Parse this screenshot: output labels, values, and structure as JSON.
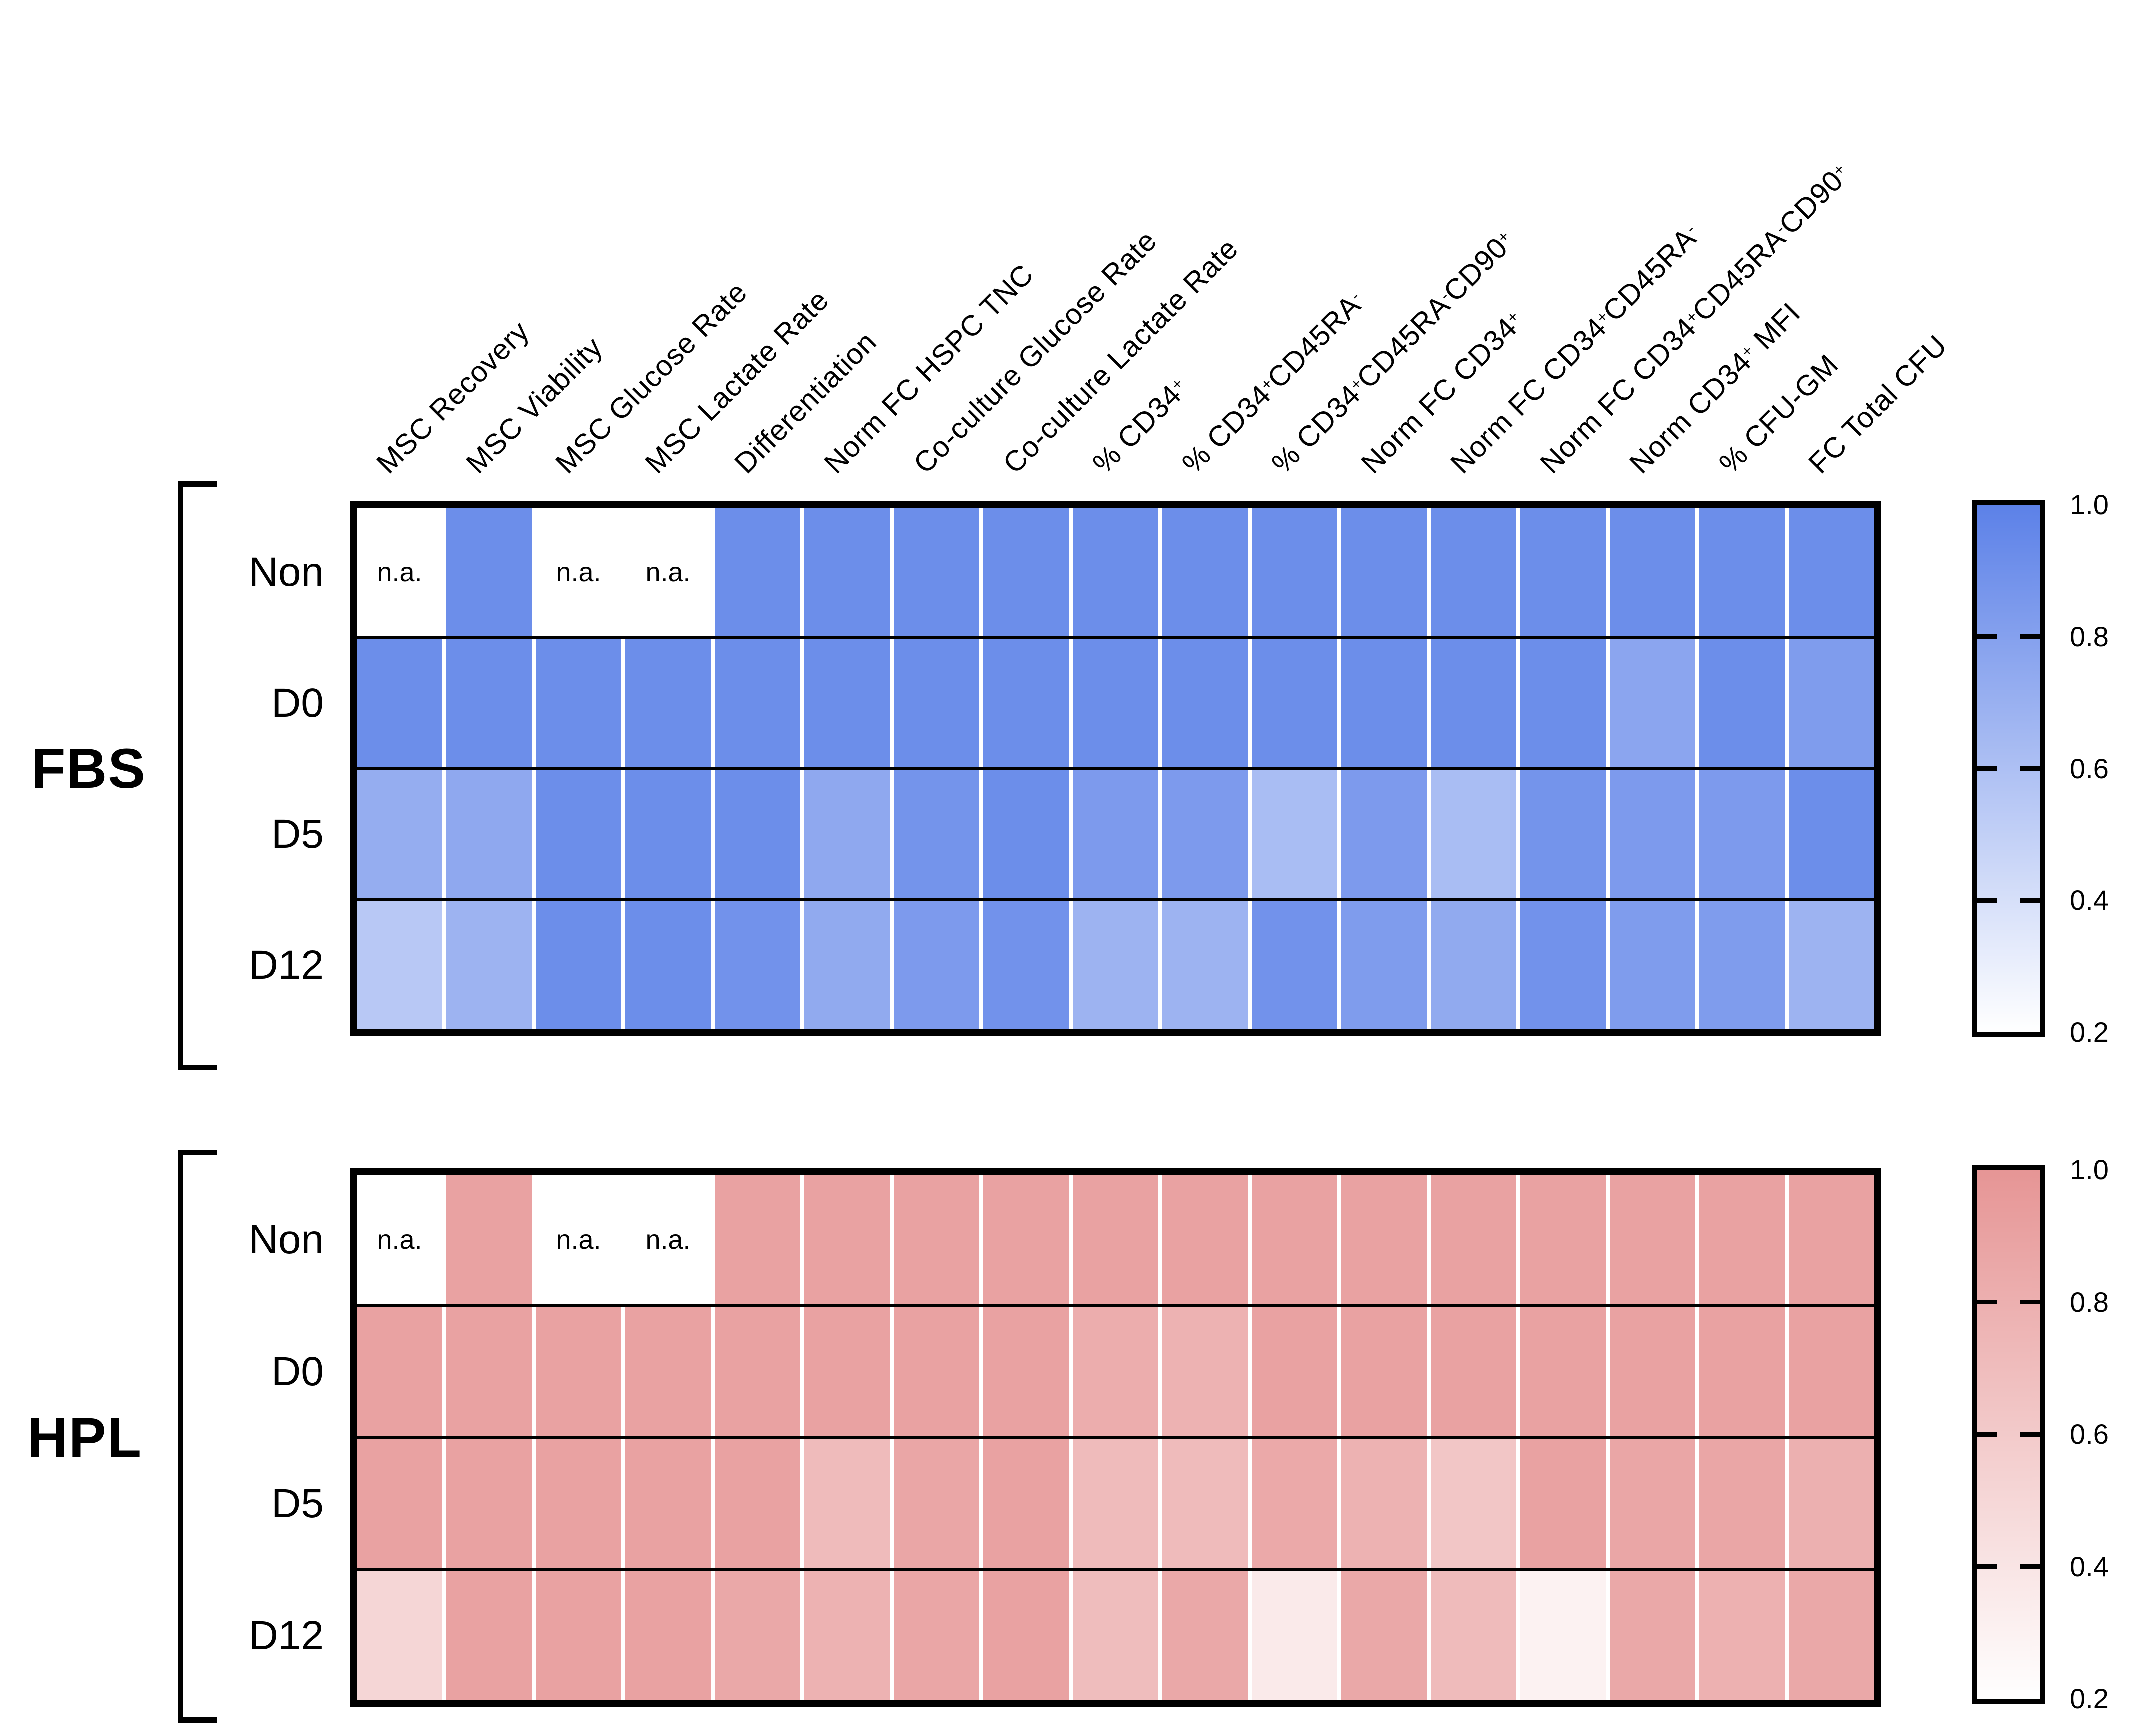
{
  "chart_data": {
    "type": "heatmap",
    "title": "",
    "na_label": "n.a.",
    "columns": [
      "MSC Recovery",
      "MSC Viability",
      "MSC Glucose Rate",
      "MSC Lactate Rate",
      "Differentiation",
      "Norm FC HSPC TNC",
      "Co-culture Glucose Rate",
      "Co-culture Lactate Rate",
      "% CD34^+^",
      "% CD34^+^CD45RA^-^",
      "% CD34^+^CD45RA^-^CD90^+^",
      "Norm FC CD34^+^",
      "Norm FC CD34^+^CD45RA^-^",
      "Norm FC CD34^+^CD45RA^-^CD90^+^",
      "Norm CD34^+^ MFI",
      "% CFU-GM",
      "FC Total CFU"
    ],
    "rows": [
      "Non",
      "D0",
      "D5",
      "D12"
    ],
    "groups": [
      {
        "name": "FBS",
        "colormap_max": "#5c81e8",
        "colormap_min": "#ffffff",
        "values": [
          [
            null,
            0.92,
            null,
            null,
            0.92,
            0.92,
            0.92,
            0.92,
            0.92,
            0.92,
            0.92,
            0.92,
            0.92,
            0.92,
            0.92,
            0.92,
            0.92
          ],
          [
            0.92,
            0.92,
            0.92,
            0.92,
            0.92,
            0.92,
            0.92,
            0.92,
            0.92,
            0.92,
            0.92,
            0.92,
            0.92,
            0.92,
            0.77,
            0.92,
            0.83
          ],
          [
            0.72,
            0.75,
            0.92,
            0.92,
            0.92,
            0.75,
            0.88,
            0.92,
            0.84,
            0.84,
            0.62,
            0.84,
            0.62,
            0.88,
            0.84,
            0.84,
            0.92
          ],
          [
            0.55,
            0.68,
            0.92,
            0.92,
            0.89,
            0.74,
            0.84,
            0.89,
            0.68,
            0.68,
            0.89,
            0.83,
            0.74,
            0.89,
            0.83,
            0.83,
            0.68
          ]
        ]
      },
      {
        "name": "HPL",
        "colormap_max": "#e69595",
        "colormap_min": "#ffffff",
        "values": [
          [
            null,
            0.9,
            null,
            null,
            0.9,
            0.9,
            0.9,
            0.9,
            0.9,
            0.9,
            0.9,
            0.9,
            0.9,
            0.9,
            0.9,
            0.9,
            0.9
          ],
          [
            0.9,
            0.9,
            0.9,
            0.9,
            0.9,
            0.9,
            0.9,
            0.9,
            0.82,
            0.78,
            0.9,
            0.9,
            0.9,
            0.9,
            0.9,
            0.9,
            0.9
          ],
          [
            0.9,
            0.9,
            0.9,
            0.9,
            0.9,
            0.71,
            0.87,
            0.9,
            0.71,
            0.71,
            0.85,
            0.78,
            0.63,
            0.9,
            0.87,
            0.87,
            0.8
          ],
          [
            0.51,
            0.9,
            0.9,
            0.9,
            0.86,
            0.78,
            0.87,
            0.9,
            0.7,
            0.86,
            0.36,
            0.86,
            0.71,
            0.3,
            0.86,
            0.79,
            0.86
          ]
        ]
      }
    ],
    "scale": {
      "vmin": 0.2,
      "vmax": 1.0,
      "tick_labels": [
        "1.0",
        "0.8",
        "0.6",
        "0.4",
        "0.2"
      ],
      "legend_position": "right"
    },
    "grid": {
      "column_separator": "#ffffff",
      "row_separator": "#000000",
      "frame": "#000000"
    }
  }
}
